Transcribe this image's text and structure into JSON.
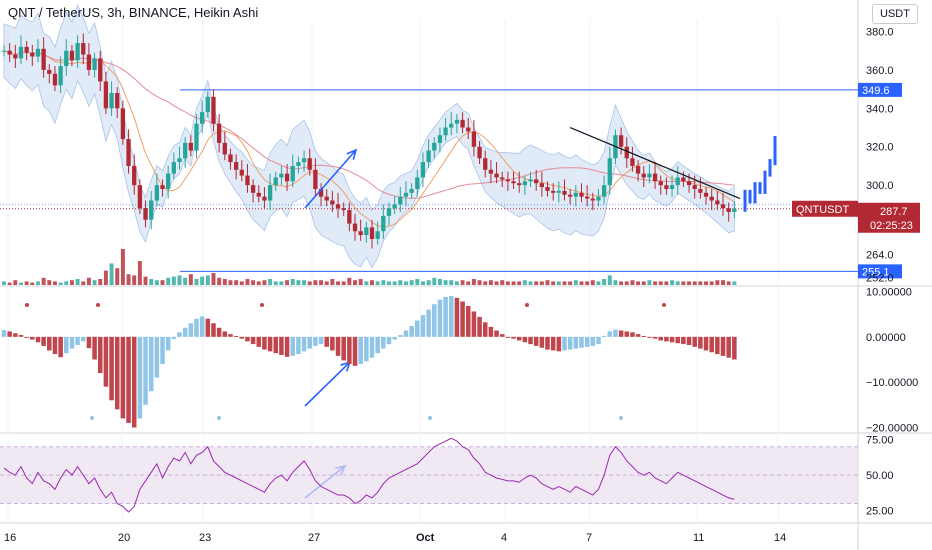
{
  "header": {
    "title": "QNT / TetherUS, 3h, BINANCE, Heikin Ashi",
    "currency": "USDT"
  },
  "price_tag": {
    "symbol": "QNTUSDT",
    "price": "287.7",
    "countdown": "02:25:23"
  },
  "colors": {
    "up": "#26a69a",
    "down": "#b22833",
    "projection": "#2962ff",
    "level": "#2962ff",
    "ma_fast": "#f0a16b",
    "ma_slow": "#e58b97",
    "band": "#bcd1ee",
    "osc_pos": "#90c5e8",
    "osc_neg": "#c0454d",
    "rsi": "#9c27b0",
    "rsi_bg": "#e9dff0"
  },
  "chart_data": [
    {
      "type": "candlestick",
      "style": "Heikin Ashi",
      "title": "QNT / TetherUS, 3h, BINANCE, Heikin Ashi",
      "x_ticks": [
        "16",
        "20",
        "23",
        "27",
        "Oct",
        "4",
        "7",
        "11",
        "14"
      ],
      "y_ticks": [
        "380.0",
        "360.0",
        "340.0",
        "320.0",
        "300.0",
        "264.0",
        "252.0"
      ],
      "ylim": [
        248,
        386
      ],
      "horizontal_levels": [
        {
          "value": 349.6,
          "label": "349.6"
        },
        {
          "value": 255.1,
          "label": "255.1"
        }
      ],
      "current_price": 287.7,
      "series": [
        {
          "name": "price",
          "values": [
            370,
            368,
            366,
            372,
            369,
            367,
            371,
            360,
            358,
            352,
            362,
            370,
            365,
            374,
            368,
            360,
            366,
            354,
            340,
            348,
            340,
            324,
            310,
            300,
            288,
            282,
            292,
            300,
            298,
            306,
            312,
            314,
            322,
            318,
            332,
            338,
            346,
            332,
            322,
            316,
            312,
            308,
            305,
            300,
            296,
            294,
            292,
            300,
            304,
            306,
            302,
            310,
            312,
            314,
            308,
            298,
            294,
            292,
            290,
            288,
            287,
            280,
            276,
            274,
            278,
            272,
            276,
            284,
            288,
            290,
            294,
            296,
            298,
            304,
            312,
            318,
            322,
            326,
            330,
            332,
            334,
            330,
            328,
            320,
            314,
            308,
            306,
            304,
            303,
            302,
            301,
            300,
            302,
            303,
            301,
            299,
            297,
            296,
            297,
            295,
            294,
            296,
            294,
            293,
            292,
            294,
            300,
            314,
            326,
            320,
            314,
            310,
            306,
            304,
            306,
            302,
            300,
            298,
            300,
            304,
            302,
            300,
            298,
            296,
            294,
            292,
            290,
            288,
            286,
            287.7
          ]
        }
      ],
      "bands": {
        "upper_offset": 14,
        "lower_offset": 14
      },
      "projection": {
        "note": "bullish continuation bars",
        "values": [
          287.7,
          296,
          292,
          300,
          297,
          306,
          312,
          324
        ]
      },
      "trendline": {
        "from": [
          318,
          330
        ],
        "to": [
          336,
          293
        ]
      },
      "arrow": {
        "from_price": 285,
        "to_price": 308
      },
      "volume": {
        "values": [
          3,
          2,
          4,
          2,
          3,
          2,
          3,
          6,
          4,
          3,
          2,
          3,
          4,
          5,
          3,
          6,
          4,
          5,
          12,
          18,
          14,
          30,
          9,
          8,
          20,
          7,
          5,
          4,
          4,
          6,
          7,
          8,
          6,
          9,
          5,
          7,
          8,
          10,
          6,
          5,
          4,
          4,
          3,
          5,
          4,
          3,
          4,
          5,
          3,
          3,
          4,
          5,
          4,
          4,
          3,
          4,
          4,
          3,
          5,
          3,
          3,
          6,
          4,
          5,
          3,
          4,
          3,
          4,
          3,
          3,
          4,
          3,
          4,
          5,
          3,
          4,
          6,
          5,
          4,
          4,
          3,
          4,
          3,
          5,
          4,
          3,
          4,
          3,
          4,
          3,
          3,
          3,
          4,
          3,
          3,
          3,
          4,
          3,
          3,
          3,
          3,
          4,
          3,
          3,
          4,
          3,
          5,
          8,
          4,
          3,
          3,
          4,
          3,
          3,
          4,
          3,
          3,
          3,
          4,
          3,
          3,
          3,
          3,
          3,
          3,
          3,
          4,
          4,
          3,
          3
        ]
      }
    },
    {
      "type": "bar",
      "title": "",
      "y_ticks": [
        "10.00000",
        "0.00000",
        "−10.00000",
        "−20.00000"
      ],
      "ylim": [
        -21,
        11
      ],
      "series": [
        {
          "name": "oscillator",
          "values": [
            1.5,
            1.2,
            0.8,
            0.4,
            -0.2,
            -0.6,
            -1.2,
            -2,
            -3,
            -3.8,
            -4.5,
            -3.6,
            -2.6,
            -1.8,
            -1,
            -2.5,
            -5,
            -8,
            -11,
            -14,
            -16,
            -18,
            -19,
            -20,
            -18,
            -15,
            -12,
            -9,
            -6,
            -3,
            -0.5,
            1,
            2,
            3,
            4,
            4.5,
            4,
            3,
            2,
            1.2,
            0.6,
            0.2,
            -0.4,
            -1,
            -1.6,
            -2.2,
            -2.8,
            -3.2,
            -3.6,
            -4,
            -4.4,
            -4.2,
            -3.8,
            -3.2,
            -2.6,
            -2,
            -1.6,
            -2.2,
            -3,
            -4.2,
            -5.2,
            -6,
            -6.4,
            -6,
            -5.4,
            -4.6,
            -3.6,
            -2.6,
            -1.6,
            -0.6,
            0.4,
            1.4,
            2.4,
            3.6,
            4.8,
            6,
            7.2,
            8.2,
            8.8,
            9,
            8.6,
            7.8,
            6.8,
            5.6,
            4.4,
            3.2,
            2.2,
            1.4,
            0.6,
            0,
            -0.4,
            -0.8,
            -1.2,
            -1.6,
            -2,
            -2.4,
            -2.8,
            -3,
            -3.2,
            -3,
            -2.8,
            -2.6,
            -2.4,
            -2.2,
            -2,
            -1.6,
            0.2,
            1.2,
            1.6,
            1.4,
            1.2,
            1,
            0.6,
            0.2,
            -0.2,
            -0.4,
            -0.8,
            -1,
            -1.2,
            -1.4,
            -1.6,
            -1.8,
            -2.2,
            -2.6,
            -3,
            -3.4,
            -3.8,
            -4.2,
            -4.6,
            -5
          ]
        }
      ]
    },
    {
      "type": "line",
      "title": "",
      "y_ticks": [
        "75.00",
        "50.00",
        "25.00"
      ],
      "ylim": [
        17,
        79
      ],
      "bands": [
        30,
        70
      ],
      "series": [
        {
          "name": "RSI",
          "values": [
            55,
            52,
            50,
            56,
            48,
            44,
            52,
            46,
            44,
            40,
            48,
            54,
            50,
            56,
            50,
            44,
            48,
            40,
            34,
            38,
            30,
            28,
            24,
            28,
            40,
            46,
            52,
            58,
            48,
            56,
            62,
            60,
            66,
            58,
            64,
            66,
            70,
            60,
            56,
            52,
            50,
            48,
            46,
            44,
            42,
            40,
            38,
            44,
            48,
            50,
            46,
            52,
            56,
            60,
            54,
            46,
            42,
            40,
            38,
            36,
            36,
            34,
            30,
            32,
            36,
            34,
            38,
            44,
            48,
            50,
            52,
            54,
            56,
            58,
            62,
            66,
            70,
            72,
            74,
            76,
            74,
            70,
            68,
            62,
            58,
            52,
            50,
            48,
            47,
            46,
            46,
            45,
            48,
            50,
            48,
            44,
            42,
            40,
            42,
            40,
            38,
            42,
            40,
            38,
            36,
            40,
            50,
            64,
            70,
            66,
            60,
            56,
            52,
            50,
            52,
            48,
            46,
            44,
            48,
            52,
            50,
            48,
            46,
            44,
            42,
            40,
            38,
            36,
            34,
            33
          ]
        }
      ]
    }
  ],
  "annotations": {
    "arrow_label": ""
  }
}
